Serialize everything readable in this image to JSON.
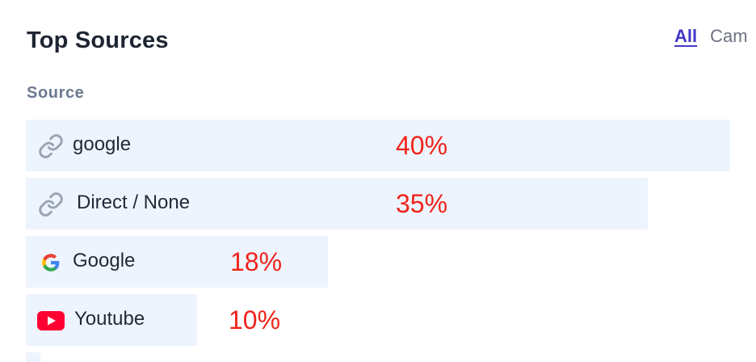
{
  "header": {
    "title": "Top Sources",
    "tabs": [
      {
        "label": "All",
        "active": true
      },
      {
        "label": "Cam",
        "active": false
      }
    ]
  },
  "table": {
    "column_header": "Source",
    "rows": [
      {
        "label": "google",
        "percent": "40%",
        "value": 40,
        "icon": "link-icon"
      },
      {
        "label": "Direct / None",
        "percent": "35%",
        "value": 35,
        "icon": "link-icon"
      },
      {
        "label": "Google",
        "percent": "18%",
        "value": 18,
        "icon": "google-g-icon"
      },
      {
        "label": "Youtube",
        "percent": "10%",
        "value": 10,
        "icon": "youtube-icon"
      }
    ]
  },
  "colors": {
    "bar": "#eef4fe",
    "percent_text": "#f0231a",
    "active_tab": "#4338ca"
  }
}
